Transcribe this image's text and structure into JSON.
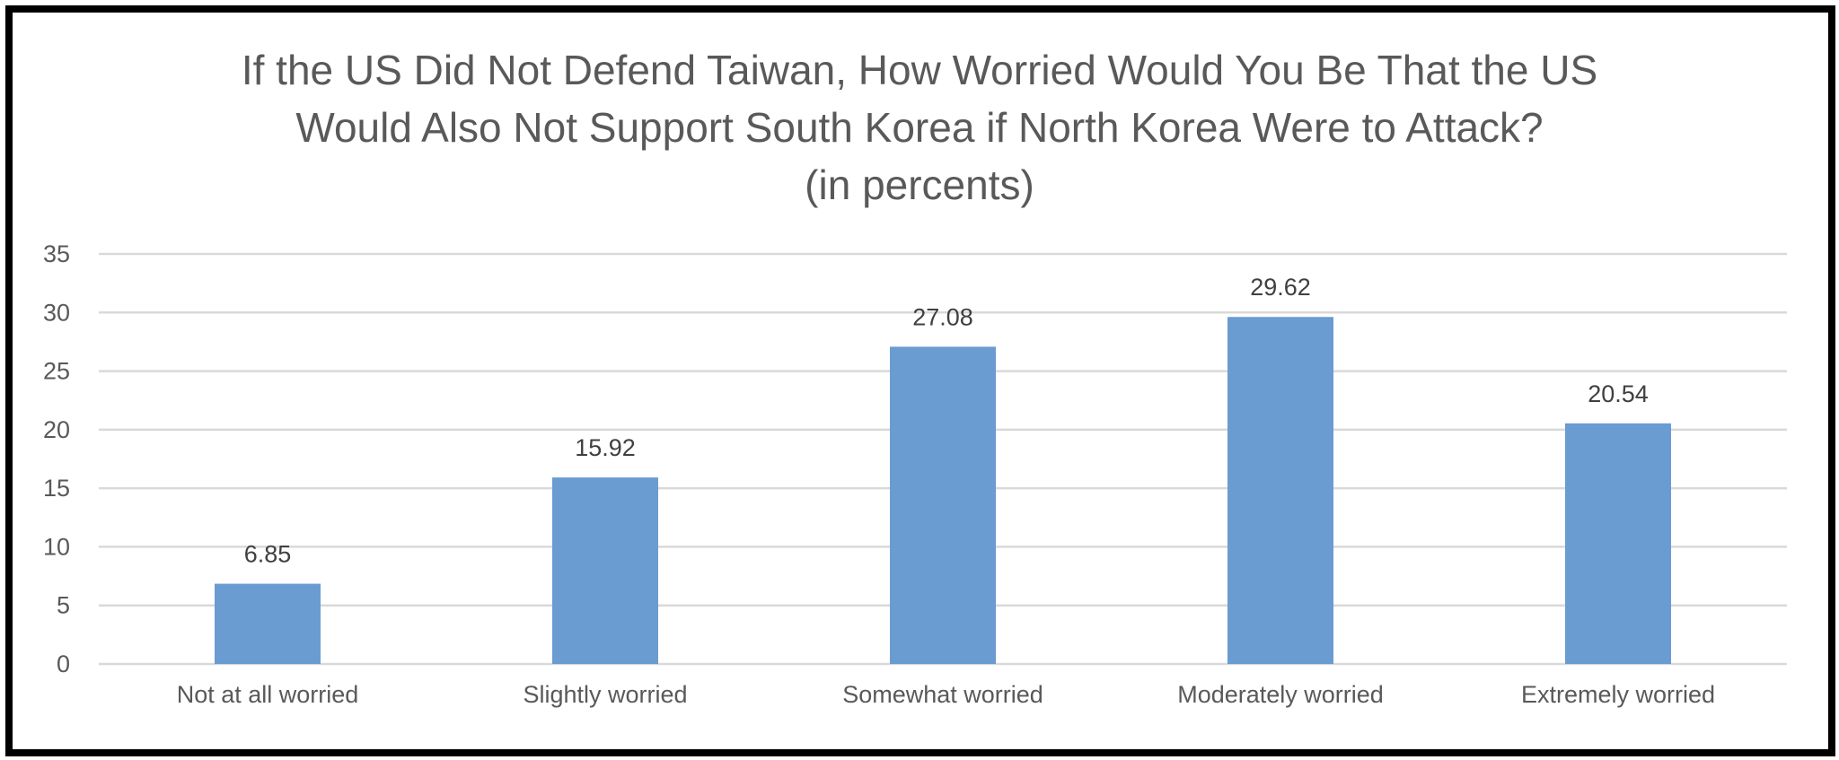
{
  "chart_data": {
    "type": "bar",
    "title_lines": [
      "If the US Did Not Defend Taiwan, How Worried Would You Be That the US",
      "Would Also Not Support South Korea if North Korea Were to Attack?",
      "(in percents)"
    ],
    "categories": [
      "Not at all worried",
      "Slightly worried",
      "Somewhat worried",
      "Moderately worried",
      "Extremely worried"
    ],
    "values": [
      6.85,
      15.92,
      27.08,
      29.62,
      20.54
    ],
    "value_labels": [
      "6.85",
      "15.92",
      "27.08",
      "29.62",
      "20.54"
    ],
    "ylim": [
      0,
      35
    ],
    "yticks": [
      0,
      5,
      10,
      15,
      20,
      25,
      30,
      35
    ],
    "grid": true,
    "bar_color": "#6A9BD1",
    "grid_color": "#D9D9D9",
    "frame_color": "#000000"
  }
}
